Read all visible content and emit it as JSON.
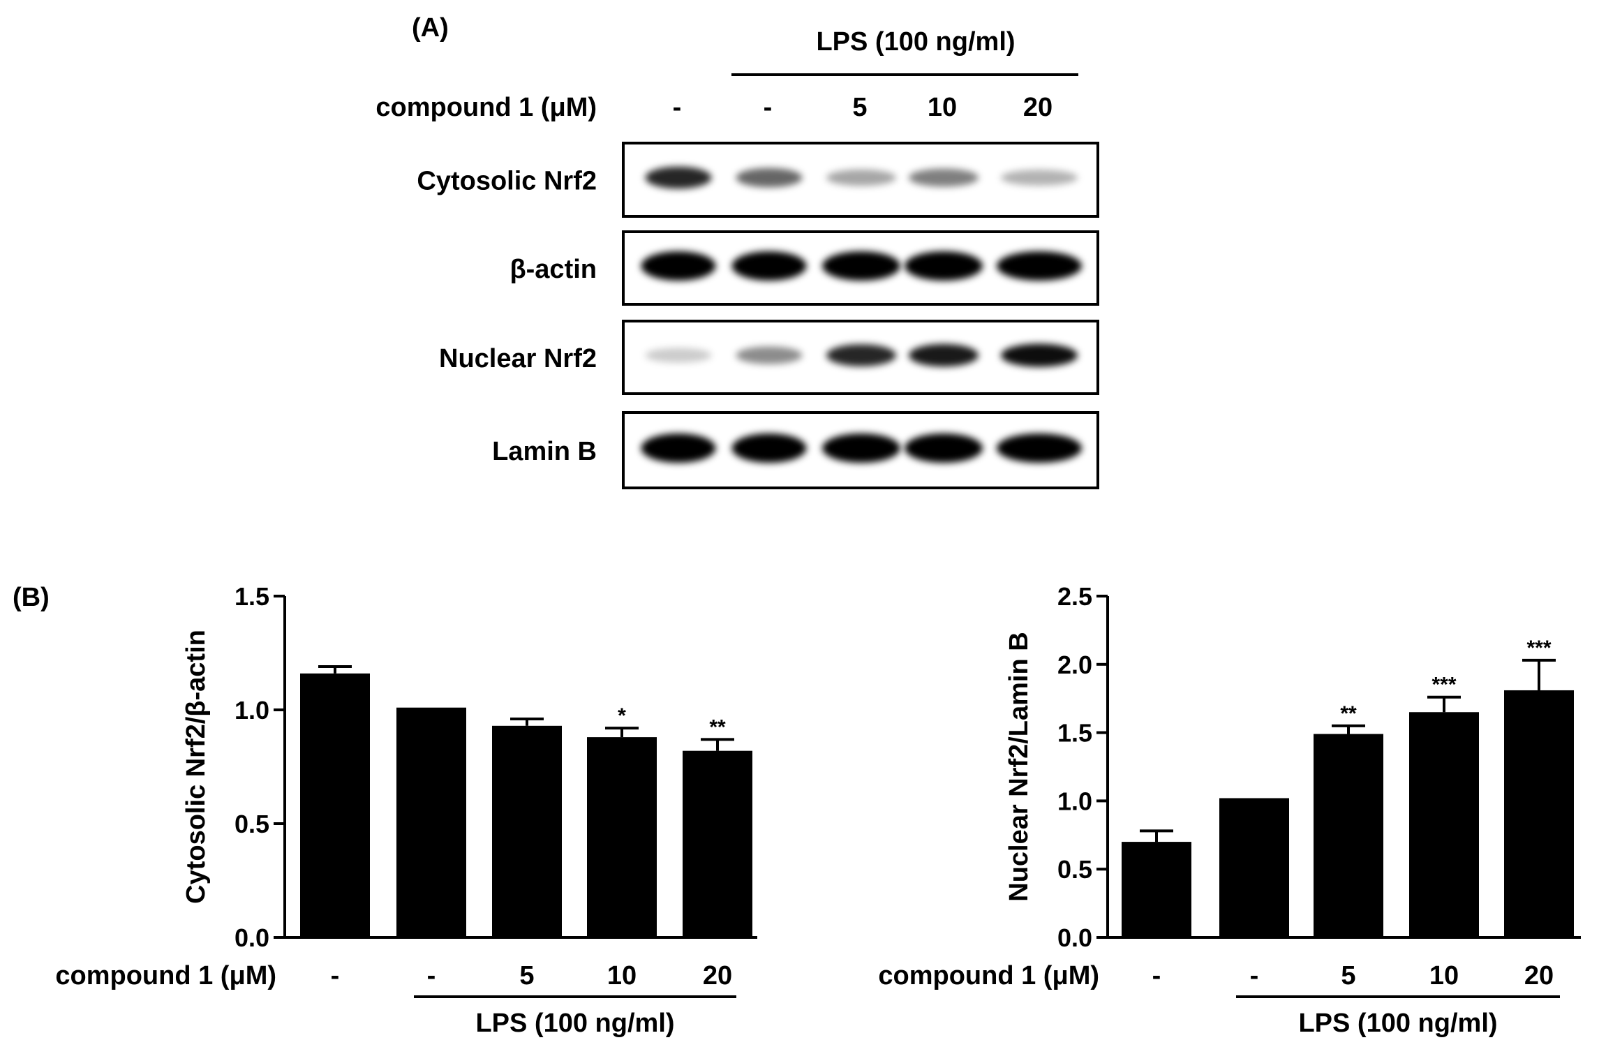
{
  "panel_a": {
    "label": "(A)",
    "lps_header": "LPS (100 ng/ml)",
    "compound_label": "compound 1 (μM)",
    "doses": [
      "-",
      "-",
      "5",
      "10",
      "20"
    ],
    "blots": [
      {
        "label": "Cytosolic Nrf2",
        "intensities": [
          0.85,
          0.6,
          0.35,
          0.5,
          0.3
        ]
      },
      {
        "label": "β-actin",
        "intensities": [
          1,
          1,
          1,
          1,
          1
        ]
      },
      {
        "label": "Nuclear Nrf2",
        "intensities": [
          0.2,
          0.45,
          0.85,
          0.9,
          0.95
        ]
      },
      {
        "label": "Lamin B",
        "intensities": [
          1,
          1,
          1,
          1,
          1
        ]
      }
    ]
  },
  "panel_b": {
    "label": "(B)"
  },
  "chart_data": [
    {
      "type": "bar",
      "ylabel": "Cytosolic Nrf2/β-actin",
      "ylim": [
        0,
        1.5
      ],
      "yticks": [
        "0.0",
        "0.5",
        "1.0",
        "1.5"
      ],
      "categories": [
        "-",
        "-",
        "5",
        "10",
        "20"
      ],
      "values": [
        1.16,
        1.01,
        0.93,
        0.88,
        0.82
      ],
      "errors": [
        0.03,
        0,
        0.03,
        0.04,
        0.05
      ],
      "annotations": [
        "",
        "",
        "",
        "*",
        "**"
      ],
      "xlabel": "compound 1 (μM)",
      "group_label": "LPS (100 ng/ml)",
      "bar_color": "#000000"
    },
    {
      "type": "bar",
      "ylabel": "Nuclear Nrf2/Lamin B",
      "ylim": [
        0,
        2.5
      ],
      "yticks": [
        "0.0",
        "0.5",
        "1.0",
        "1.5",
        "2.0",
        "2.5"
      ],
      "categories": [
        "-",
        "-",
        "5",
        "10",
        "20"
      ],
      "values": [
        0.7,
        1.02,
        1.49,
        1.65,
        1.81
      ],
      "errors": [
        0.08,
        0,
        0.06,
        0.11,
        0.22
      ],
      "annotations": [
        "",
        "",
        "**",
        "***",
        "***"
      ],
      "xlabel": "compound 1 (μM)",
      "group_label": "LPS (100 ng/ml)",
      "bar_color": "#000000"
    }
  ]
}
